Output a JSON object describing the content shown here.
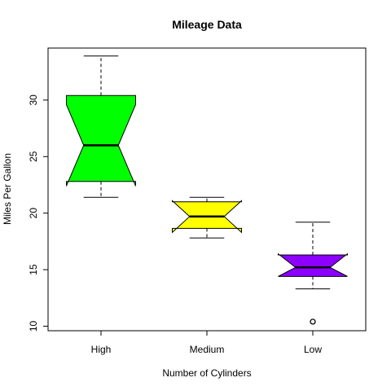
{
  "chart_data": {
    "type": "box",
    "title": "Mileage Data",
    "xlabel": "Number of Cylinders",
    "ylabel": "Miles Per Gallon",
    "ylim": [
      9.6,
      34.6
    ],
    "yticks": [
      10,
      15,
      20,
      25,
      30
    ],
    "notched": true,
    "boxes": [
      {
        "category": "High",
        "color": "#00ff00",
        "whisker_low": 21.4,
        "q1": 22.8,
        "median": 26.0,
        "q3": 30.4,
        "whisker_high": 33.9,
        "notch_low": 22.4,
        "notch_high": 29.6,
        "outliers": []
      },
      {
        "category": "Medium",
        "color": "#ffff00",
        "whisker_low": 17.8,
        "q1": 18.65,
        "median": 19.7,
        "q3": 21.0,
        "whisker_high": 21.4,
        "notch_low": 18.3,
        "notch_high": 21.1,
        "outliers": []
      },
      {
        "category": "Low",
        "color": "#8b00ff",
        "whisker_low": 13.3,
        "q1": 14.4,
        "median": 15.2,
        "q3": 16.3,
        "whisker_high": 19.2,
        "notch_low": 14.4,
        "notch_high": 16.4,
        "outliers": [
          10.4
        ]
      }
    ]
  }
}
